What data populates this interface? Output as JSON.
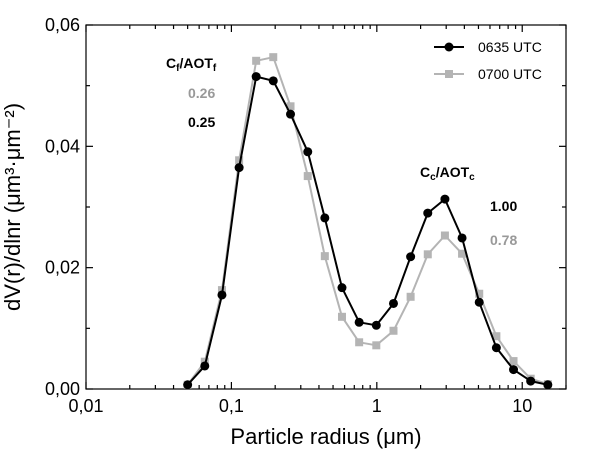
{
  "chart_data": {
    "type": "line",
    "xlabel": "Particle radius (μm)",
    "ylabel": "dV(r)/dlnr (μm³·μm⁻²)",
    "x_scale": "log",
    "xlim": [
      0.01,
      20
    ],
    "ylim": [
      0,
      0.06
    ],
    "x_ticks": [
      {
        "value": 0.01,
        "label": "0,01"
      },
      {
        "value": 0.1,
        "label": "0,1"
      },
      {
        "value": 1,
        "label": "1"
      },
      {
        "value": 10,
        "label": "10"
      }
    ],
    "y_ticks": [
      {
        "value": 0,
        "label": "0,00"
      },
      {
        "value": 0.02,
        "label": "0,02"
      },
      {
        "value": 0.04,
        "label": "0,04"
      },
      {
        "value": 0.06,
        "label": "0,06"
      }
    ],
    "grid": false,
    "legend_position": "top-right",
    "colors": {
      "series_0635": "#000000",
      "series_0700": "#b4b4b4"
    },
    "series": [
      {
        "name": "0635 UTC",
        "marker": "circle",
        "x": [
          0.05,
          0.0656,
          0.0861,
          0.113,
          0.148,
          0.194,
          0.255,
          0.335,
          0.439,
          0.576,
          0.756,
          0.992,
          1.302,
          1.708,
          2.241,
          2.94,
          3.857,
          5.061,
          6.641,
          8.713,
          11.432,
          15.0
        ],
        "y": [
          0.0007,
          0.0038,
          0.0155,
          0.0365,
          0.0515,
          0.0508,
          0.0453,
          0.0391,
          0.0282,
          0.0167,
          0.011,
          0.0105,
          0.0141,
          0.0218,
          0.029,
          0.0313,
          0.0249,
          0.0143,
          0.0068,
          0.0032,
          0.0013,
          0.0007
        ]
      },
      {
        "name": "0700 UTC",
        "marker": "square",
        "x": [
          0.05,
          0.0656,
          0.0861,
          0.113,
          0.148,
          0.194,
          0.255,
          0.335,
          0.439,
          0.576,
          0.756,
          0.992,
          1.302,
          1.708,
          2.241,
          2.94,
          3.857,
          5.061,
          6.641,
          8.713,
          11.432,
          15.0
        ],
        "y": [
          0.0007,
          0.0045,
          0.0163,
          0.0377,
          0.0541,
          0.0547,
          0.0466,
          0.0351,
          0.0219,
          0.0119,
          0.0077,
          0.0072,
          0.0096,
          0.0152,
          0.0222,
          0.0253,
          0.0223,
          0.0157,
          0.0087,
          0.0046,
          0.0017,
          0.0008
        ]
      }
    ],
    "annotations": {
      "fine": {
        "title_main": "C",
        "title_sub": "f",
        "title_mid": "/AOT",
        "title_sub2": "f",
        "val_0700": "0.26",
        "val_0635": "0.25"
      },
      "coarse": {
        "title_main": "C",
        "title_sub": "c",
        "title_mid": "/AOT",
        "title_sub2": "c",
        "val_0635": "1.00",
        "val_0700": "0.78"
      }
    }
  }
}
